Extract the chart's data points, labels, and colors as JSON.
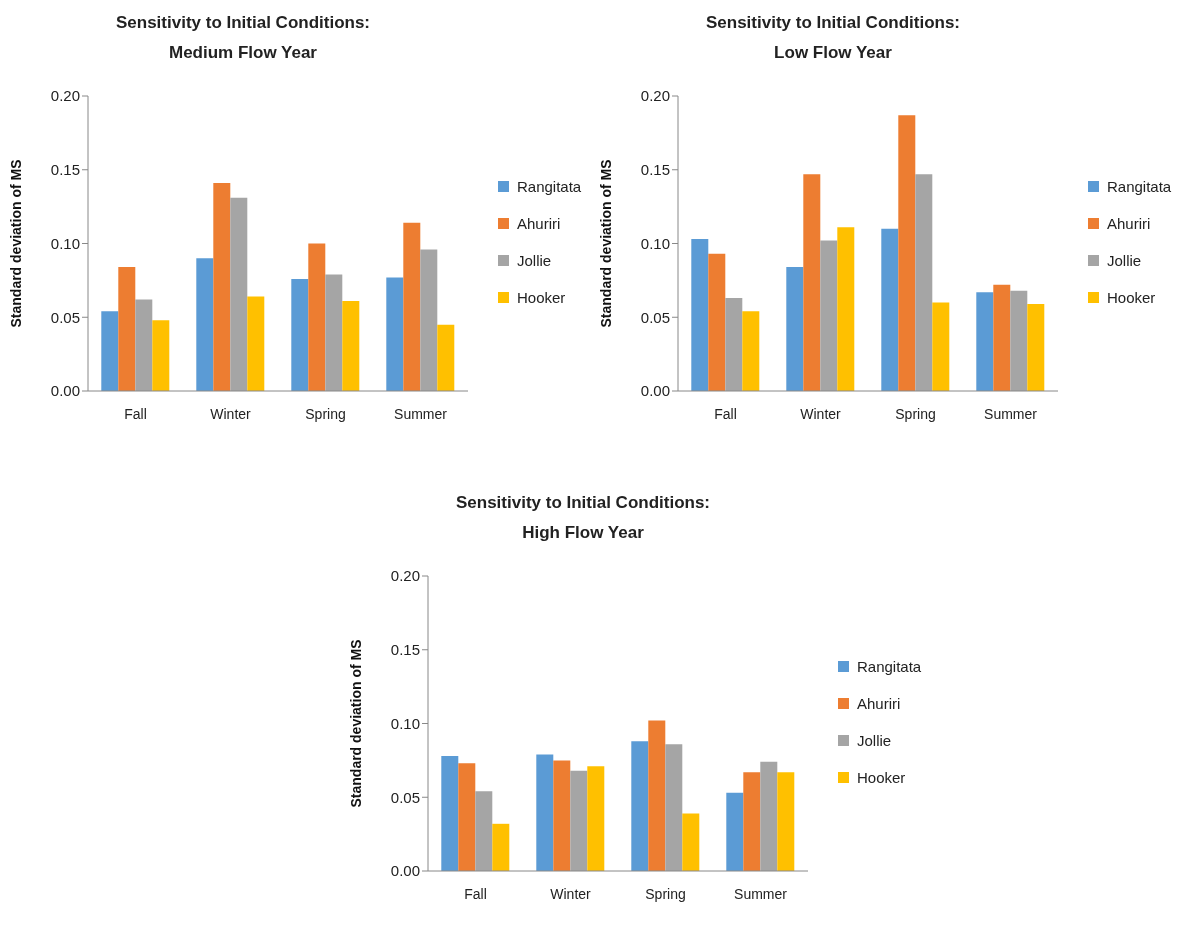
{
  "chart_data": [
    {
      "type": "bar",
      "title": "Sensitivity to Initial Conditions:\nMedium Flow Year",
      "ylabel": "Standard deviation of MS",
      "categories": [
        "Fall",
        "Winter",
        "Spring",
        "Summer"
      ],
      "ylim": [
        0,
        0.2
      ],
      "yticks": [
        {
          "value": 0,
          "label": "0.00"
        },
        {
          "value": 0.05,
          "label": "0.05"
        },
        {
          "value": 0.1,
          "label": "0.10"
        },
        {
          "value": 0.15,
          "label": "0.15"
        },
        {
          "value": 0.2,
          "label": "0.20"
        }
      ],
      "legend": "right",
      "grid": false,
      "series": [
        {
          "name": "Rangitata",
          "color": "#5b9bd5",
          "values": [
            0.054,
            0.09,
            0.076,
            0.077
          ]
        },
        {
          "name": "Ahuriri",
          "color": "#ed7d31",
          "values": [
            0.084,
            0.141,
            0.1,
            0.114
          ]
        },
        {
          "name": "Jollie",
          "color": "#a5a5a5",
          "values": [
            0.062,
            0.131,
            0.079,
            0.096
          ]
        },
        {
          "name": "Hooker",
          "color": "#ffc000",
          "values": [
            0.048,
            0.064,
            0.061,
            0.045
          ]
        }
      ]
    },
    {
      "type": "bar",
      "title": "Sensitivity to Initial Conditions:\nLow Flow Year",
      "ylabel": "Standard deviation of MS",
      "categories": [
        "Fall",
        "Winter",
        "Spring",
        "Summer"
      ],
      "ylim": [
        0,
        0.2
      ],
      "yticks": [
        {
          "value": 0,
          "label": "0.00"
        },
        {
          "value": 0.05,
          "label": "0.05"
        },
        {
          "value": 0.1,
          "label": "0.10"
        },
        {
          "value": 0.15,
          "label": "0.15"
        },
        {
          "value": 0.2,
          "label": "0.20"
        }
      ],
      "legend": "right",
      "grid": false,
      "series": [
        {
          "name": "Rangitata",
          "color": "#5b9bd5",
          "values": [
            0.103,
            0.084,
            0.11,
            0.067
          ]
        },
        {
          "name": "Ahuriri",
          "color": "#ed7d31",
          "values": [
            0.093,
            0.147,
            0.187,
            0.072
          ]
        },
        {
          "name": "Jollie",
          "color": "#a5a5a5",
          "values": [
            0.063,
            0.102,
            0.147,
            0.068
          ]
        },
        {
          "name": "Hooker",
          "color": "#ffc000",
          "values": [
            0.054,
            0.111,
            0.06,
            0.059
          ]
        }
      ]
    },
    {
      "type": "bar",
      "title": "Sensitivity to Initial Conditions:\nHigh Flow Year",
      "ylabel": "Standard deviation of MS",
      "categories": [
        "Fall",
        "Winter",
        "Spring",
        "Summer"
      ],
      "ylim": [
        0,
        0.2
      ],
      "yticks": [
        {
          "value": 0,
          "label": "0.00"
        },
        {
          "value": 0.05,
          "label": "0.05"
        },
        {
          "value": 0.1,
          "label": "0.10"
        },
        {
          "value": 0.15,
          "label": "0.15"
        },
        {
          "value": 0.2,
          "label": "0.20"
        }
      ],
      "legend": "right",
      "grid": false,
      "series": [
        {
          "name": "Rangitata",
          "color": "#5b9bd5",
          "values": [
            0.078,
            0.079,
            0.088,
            0.053
          ]
        },
        {
          "name": "Ahuriri",
          "color": "#ed7d31",
          "values": [
            0.073,
            0.075,
            0.102,
            0.067
          ]
        },
        {
          "name": "Jollie",
          "color": "#a5a5a5",
          "values": [
            0.054,
            0.068,
            0.086,
            0.074
          ]
        },
        {
          "name": "Hooker",
          "color": "#ffc000",
          "values": [
            0.032,
            0.071,
            0.039,
            0.067
          ]
        }
      ]
    }
  ]
}
